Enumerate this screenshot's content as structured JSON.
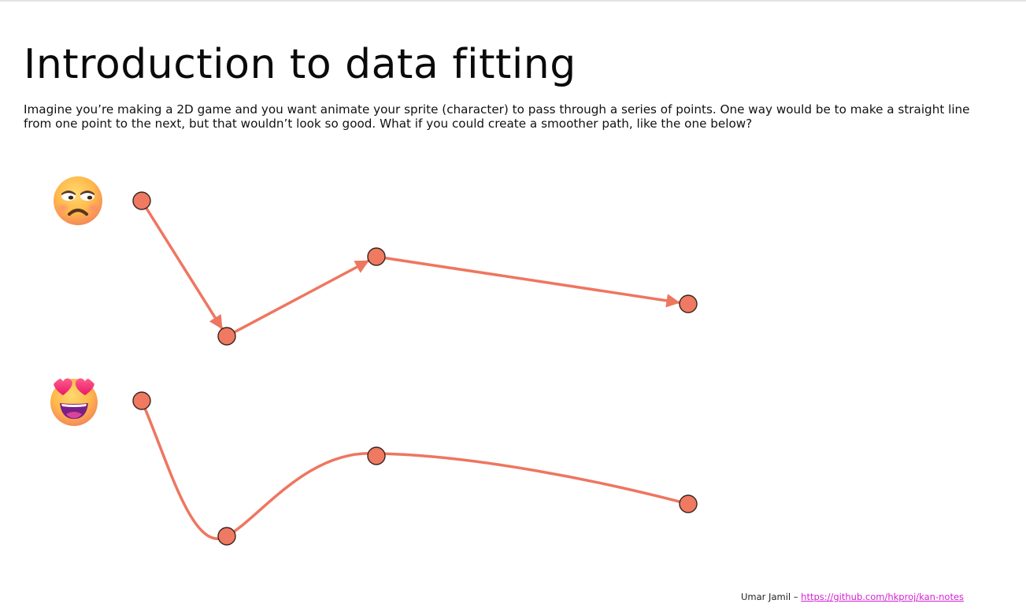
{
  "slide": {
    "title": "Introduction to data fitting",
    "intro": "Imagine you’re making a 2D game and you want animate your sprite (character) to pass through a series of points. One way would be to make a straight line from one point to the next, but that wouldn’t look so good. What if you could create a smoother path, like the one below?"
  },
  "rows": {
    "straight": {
      "emoji": "unamused-face-icon"
    },
    "smooth": {
      "emoji": "heart-eyes-face-icon"
    }
  },
  "colors": {
    "path": "#ee7660",
    "point_fill": "#ef7a61",
    "point_stroke": "#3a2420",
    "link": "#d21fd2"
  },
  "footer": {
    "author": "Umar Jamil",
    "separator": " – ",
    "link": "https://github.com/hkproj/kan-notes"
  }
}
